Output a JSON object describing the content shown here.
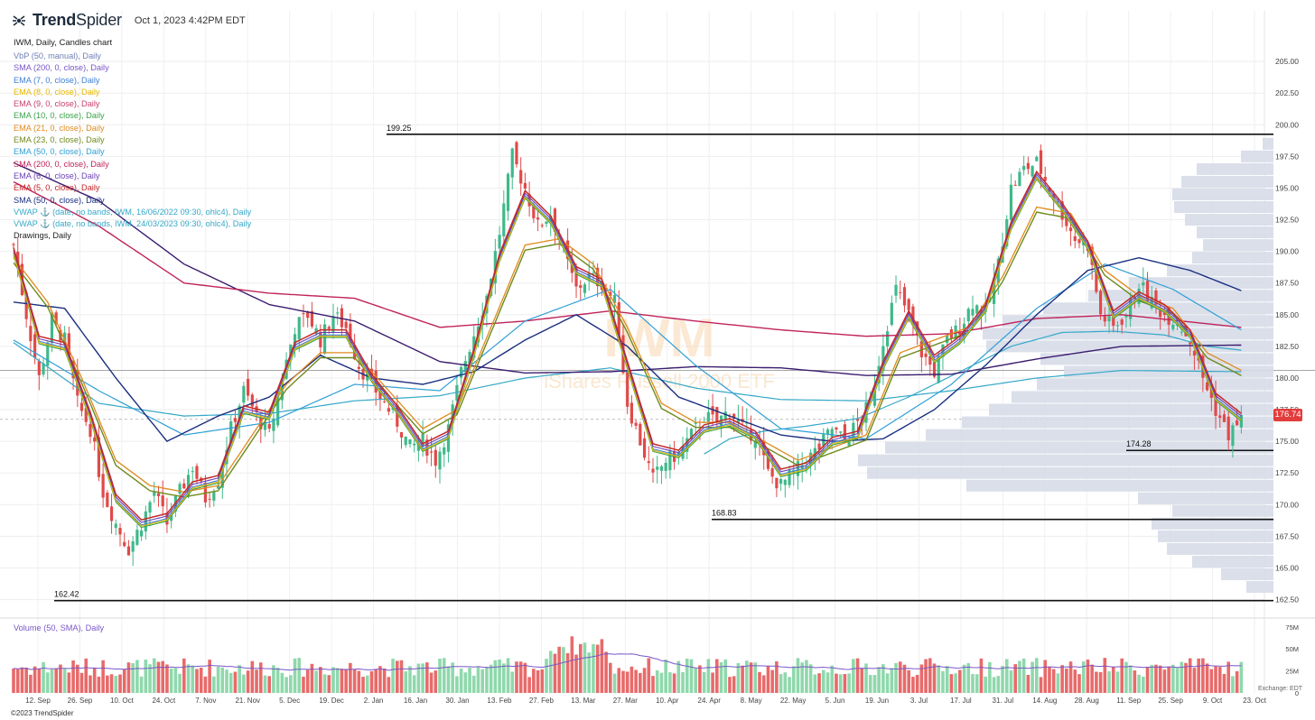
{
  "header": {
    "brand_bold": "Trend",
    "brand_light": "Spider",
    "timestamp": "Oct 1, 2023 4:42PM EDT",
    "symbol_line": "IWM, Daily, Candles chart"
  },
  "indicators": [
    {
      "label": "VbP (50, manual), Daily",
      "color": "#6f7fb5"
    },
    {
      "label": "SMA (200, 0, close), Daily",
      "color": "#7a56c8"
    },
    {
      "label": "EMA (7, 0, close), Daily",
      "color": "#3f7fd6"
    },
    {
      "label": "EMA (8, 0, close), Daily",
      "color": "#e6b800"
    },
    {
      "label": "EMA (9, 0, close), Daily",
      "color": "#c8406a"
    },
    {
      "label": "EMA (10, 0, close), Daily",
      "color": "#3aa24a"
    },
    {
      "label": "EMA (21, 0, close), Daily",
      "color": "#e08a1e"
    },
    {
      "label": "EMA (23, 0, close), Daily",
      "color": "#6f8a1c"
    },
    {
      "label": "EMA (50, 0, close), Daily",
      "color": "#2f9fd6"
    },
    {
      "label": "SMA (200, 0, close), Daily",
      "color": "#c0235a"
    },
    {
      "label": "EMA (6, 0, close), Daily",
      "color": "#6a3fb5"
    },
    {
      "label": "EMA (5, 0, close), Daily",
      "color": "#c62828"
    },
    {
      "label": "SMA (50, 0, close), Daily",
      "color": "#1a2f80"
    },
    {
      "label": "VWAP ⚓ (date, no bands, IWM, 16/06/2022 09:30, ohlc4), Daily",
      "color": "#34a8c8"
    },
    {
      "label": "VWAP ⚓ (date, no bands, IWM, 24/03/2023 09:30, ohlc4), Daily",
      "color": "#34a8c8"
    },
    {
      "label": "Drawings, Daily",
      "color": "#222222"
    }
  ],
  "volume_title": "Volume (50, SMA), Daily",
  "footer": {
    "copyright": "©2023 TrendSpider",
    "exchange": "Exchange: EDT"
  },
  "last_price": "176.74",
  "watermark": {
    "symbol": "IWM",
    "name": "iShares Russell 2000 ETF"
  },
  "colors": {
    "up": "#3fb98a",
    "down": "#e04a4a",
    "up_vol": "#8fd8ac",
    "down_vol": "#e86a6a",
    "vbp": "#d6dce8"
  },
  "chart_data": {
    "type": "candlestick",
    "x_tick_labels": [
      "12. Sep",
      "26. Sep",
      "10. Oct",
      "24. Oct",
      "7. Nov",
      "21. Nov",
      "5. Dec",
      "19. Dec",
      "2. Jan",
      "16. Jan",
      "30. Jan",
      "13. Feb",
      "27. Feb",
      "13. Mar",
      "27. Mar",
      "10. Apr",
      "24. Apr",
      "8. May",
      "22. May",
      "5. Jun",
      "19. Jun",
      "3. Jul",
      "17. Jul",
      "31. Jul",
      "14. Aug",
      "28. Aug",
      "11. Sep",
      "25. Sep",
      "9. Oct",
      "23. Oct"
    ],
    "price_axis": {
      "ticks": [
        162.5,
        165,
        167.5,
        170,
        172.5,
        175,
        177.5,
        180,
        182.5,
        185,
        187.5,
        190,
        192.5,
        195,
        197.5,
        200,
        202.5,
        205
      ],
      "range": [
        161.4,
        209.0
      ]
    },
    "volume_axis": {
      "ticks": [
        "75M",
        "50M",
        "25M",
        "0"
      ],
      "range": [
        0,
        82
      ]
    },
    "horizontal_levels": [
      {
        "label": "199.25",
        "value": 199.25
      },
      {
        "label": "174.28",
        "value": 174.28
      },
      {
        "label": "168.83",
        "value": 168.83
      },
      {
        "label": "162.42",
        "value": 162.42
      }
    ],
    "close_path": [
      [
        0,
        190.5
      ],
      [
        3,
        185
      ],
      [
        6,
        180
      ],
      [
        9,
        184.5
      ],
      [
        12,
        183
      ],
      [
        15,
        178
      ],
      [
        18,
        176
      ],
      [
        21,
        171
      ],
      [
        24,
        168.5
      ],
      [
        27,
        166.5
      ],
      [
        30,
        168.5
      ],
      [
        33,
        171
      ],
      [
        36,
        168.5
      ],
      [
        39,
        171
      ],
      [
        42,
        173
      ],
      [
        45,
        170.5
      ],
      [
        48,
        172
      ],
      [
        51,
        176
      ],
      [
        54,
        179
      ],
      [
        57,
        177
      ],
      [
        60,
        175.5
      ],
      [
        63,
        180
      ],
      [
        66,
        184
      ],
      [
        69,
        185
      ],
      [
        72,
        183
      ],
      [
        75,
        185
      ],
      [
        78,
        184
      ],
      [
        81,
        181
      ],
      [
        84,
        179.5
      ],
      [
        87,
        178
      ],
      [
        90,
        176.5
      ],
      [
        93,
        174.5
      ],
      [
        96,
        175
      ],
      [
        99,
        173.5
      ],
      [
        102,
        176
      ],
      [
        105,
        180.5
      ],
      [
        108,
        183.5
      ],
      [
        111,
        186.5
      ],
      [
        114,
        191.5
      ],
      [
        117,
        197.5
      ],
      [
        120,
        195
      ],
      [
        123,
        192
      ],
      [
        126,
        193
      ],
      [
        129,
        190
      ],
      [
        132,
        187
      ],
      [
        135,
        188
      ],
      [
        138,
        187.5
      ],
      [
        141,
        186
      ],
      [
        144,
        178
      ],
      [
        147,
        175
      ],
      [
        150,
        172
      ],
      [
        153,
        173.5
      ],
      [
        156,
        174
      ],
      [
        159,
        175.5
      ],
      [
        162,
        177
      ],
      [
        165,
        176.5
      ],
      [
        168,
        177.5
      ],
      [
        171,
        176
      ],
      [
        174,
        175.5
      ],
      [
        177,
        172.5
      ],
      [
        180,
        171.5
      ],
      [
        183,
        172.5
      ],
      [
        186,
        173.5
      ],
      [
        189,
        174.5
      ],
      [
        192,
        176
      ],
      [
        195,
        175
      ],
      [
        198,
        176.5
      ],
      [
        201,
        178
      ],
      [
        204,
        183
      ],
      [
        207,
        187
      ],
      [
        210,
        185
      ],
      [
        213,
        182
      ],
      [
        216,
        180.5
      ],
      [
        219,
        183
      ],
      [
        222,
        184
      ],
      [
        225,
        186
      ],
      [
        228,
        185
      ],
      [
        231,
        189
      ],
      [
        234,
        195
      ],
      [
        237,
        196.5
      ],
      [
        240,
        197
      ],
      [
        243,
        195
      ],
      [
        246,
        193
      ],
      [
        249,
        191
      ],
      [
        252,
        190.5
      ],
      [
        255,
        185
      ],
      [
        258,
        184
      ],
      [
        261,
        185
      ],
      [
        264,
        187.5
      ],
      [
        267,
        186
      ],
      [
        270,
        185
      ],
      [
        273,
        184.5
      ],
      [
        276,
        183
      ],
      [
        279,
        180
      ],
      [
        282,
        177.5
      ],
      [
        285,
        175.5
      ],
      [
        288,
        176.74
      ]
    ],
    "ema_fast_path": [
      [
        0,
        190
      ],
      [
        6,
        183
      ],
      [
        12,
        182.5
      ],
      [
        18,
        177
      ],
      [
        24,
        170.5
      ],
      [
        30,
        168.5
      ],
      [
        36,
        169
      ],
      [
        42,
        171.5
      ],
      [
        48,
        172
      ],
      [
        54,
        177.5
      ],
      [
        60,
        177
      ],
      [
        66,
        182.5
      ],
      [
        72,
        183.5
      ],
      [
        78,
        183.5
      ],
      [
        84,
        180
      ],
      [
        90,
        177.5
      ],
      [
        96,
        174.5
      ],
      [
        102,
        175.5
      ],
      [
        108,
        182
      ],
      [
        114,
        189.5
      ],
      [
        120,
        194.5
      ],
      [
        126,
        192.5
      ],
      [
        132,
        188.5
      ],
      [
        138,
        187.5
      ],
      [
        144,
        181
      ],
      [
        150,
        174.5
      ],
      [
        156,
        174
      ],
      [
        162,
        176
      ],
      [
        168,
        176.5
      ],
      [
        174,
        175.5
      ],
      [
        180,
        172.5
      ],
      [
        186,
        173
      ],
      [
        192,
        175
      ],
      [
        198,
        175.5
      ],
      [
        204,
        181
      ],
      [
        210,
        185
      ],
      [
        216,
        181.5
      ],
      [
        222,
        183
      ],
      [
        228,
        185.5
      ],
      [
        234,
        192
      ],
      [
        240,
        196
      ],
      [
        246,
        193.5
      ],
      [
        252,
        190.5
      ],
      [
        258,
        185
      ],
      [
        264,
        186.5
      ],
      [
        270,
        185.5
      ],
      [
        276,
        183.5
      ],
      [
        282,
        178.5
      ],
      [
        288,
        176.9
      ]
    ],
    "ema_21_path": [
      [
        0,
        189.5
      ],
      [
        8,
        186
      ],
      [
        16,
        180
      ],
      [
        24,
        173.5
      ],
      [
        32,
        171.5
      ],
      [
        40,
        171
      ],
      [
        48,
        171.5
      ],
      [
        56,
        175.5
      ],
      [
        64,
        179.5
      ],
      [
        72,
        182
      ],
      [
        80,
        182
      ],
      [
        88,
        179
      ],
      [
        96,
        176
      ],
      [
        104,
        177.5
      ],
      [
        112,
        184
      ],
      [
        120,
        190.5
      ],
      [
        128,
        191
      ],
      [
        136,
        189
      ],
      [
        144,
        184
      ],
      [
        152,
        178
      ],
      [
        160,
        176.5
      ],
      [
        168,
        176.5
      ],
      [
        176,
        175
      ],
      [
        184,
        173.5
      ],
      [
        192,
        174.5
      ],
      [
        200,
        175.5
      ],
      [
        208,
        182
      ],
      [
        216,
        183
      ],
      [
        224,
        184
      ],
      [
        232,
        188
      ],
      [
        240,
        193.5
      ],
      [
        248,
        193
      ],
      [
        256,
        188.5
      ],
      [
        264,
        186.5
      ],
      [
        272,
        185.5
      ],
      [
        280,
        182
      ],
      [
        288,
        180.6
      ]
    ],
    "ema_50_path": [
      [
        0,
        183
      ],
      [
        20,
        179
      ],
      [
        40,
        175.5
      ],
      [
        60,
        176.5
      ],
      [
        80,
        179.5
      ],
      [
        100,
        179
      ],
      [
        120,
        184.5
      ],
      [
        140,
        187
      ],
      [
        160,
        181
      ],
      [
        180,
        176
      ],
      [
        200,
        175.2
      ],
      [
        220,
        179.5
      ],
      [
        240,
        185.5
      ],
      [
        256,
        189
      ],
      [
        272,
        187
      ],
      [
        288,
        183.8
      ]
    ],
    "sma_50_path": [
      [
        0,
        186
      ],
      [
        12,
        185.5
      ],
      [
        24,
        180
      ],
      [
        36,
        175
      ],
      [
        48,
        177
      ],
      [
        60,
        178.5
      ],
      [
        72,
        181.8
      ],
      [
        84,
        180
      ],
      [
        96,
        179.5
      ],
      [
        108,
        180.5
      ],
      [
        120,
        183
      ],
      [
        132,
        185
      ],
      [
        144,
        182.5
      ],
      [
        156,
        178.5
      ],
      [
        168,
        177
      ],
      [
        180,
        175.5
      ],
      [
        192,
        175
      ],
      [
        204,
        175.2
      ],
      [
        216,
        177.5
      ],
      [
        228,
        181
      ],
      [
        240,
        185
      ],
      [
        252,
        188.5
      ],
      [
        264,
        189.5
      ],
      [
        276,
        188.5
      ],
      [
        288,
        186.9
      ]
    ],
    "sma_200_red_path": [
      [
        0,
        195.5
      ],
      [
        20,
        192
      ],
      [
        40,
        187.5
      ],
      [
        60,
        186.7
      ],
      [
        80,
        186.3
      ],
      [
        100,
        184
      ],
      [
        120,
        184.5
      ],
      [
        140,
        185.3
      ],
      [
        160,
        184.5
      ],
      [
        180,
        183.8
      ],
      [
        200,
        183.3
      ],
      [
        220,
        183.5
      ],
      [
        240,
        184.7
      ],
      [
        260,
        185
      ],
      [
        288,
        184.0
      ]
    ],
    "sma_200_purple_path": [
      [
        0,
        197
      ],
      [
        20,
        194
      ],
      [
        40,
        189
      ],
      [
        60,
        185.8
      ],
      [
        80,
        184.5
      ],
      [
        100,
        181.3
      ],
      [
        120,
        180.4
      ],
      [
        140,
        180.5
      ],
      [
        160,
        180.9
      ],
      [
        180,
        180.8
      ],
      [
        200,
        180.2
      ],
      [
        220,
        180.3
      ],
      [
        240,
        181.5
      ],
      [
        260,
        182.5
      ],
      [
        288,
        182.6
      ]
    ],
    "vwap1_path": [
      [
        0,
        182.8
      ],
      [
        20,
        178
      ],
      [
        40,
        177
      ],
      [
        60,
        177.2
      ],
      [
        80,
        178.2
      ],
      [
        100,
        178.6
      ],
      [
        120,
        180
      ],
      [
        140,
        180.8
      ],
      [
        160,
        179.2
      ],
      [
        180,
        178.3
      ],
      [
        200,
        178.2
      ],
      [
        220,
        179
      ],
      [
        240,
        180
      ],
      [
        260,
        180.6
      ],
      [
        288,
        180.5
      ]
    ],
    "vwap2_path": [
      [
        162,
        174
      ],
      [
        168,
        175.2
      ],
      [
        176,
        175.8
      ],
      [
        186,
        176.2
      ],
      [
        198,
        176.8
      ],
      [
        210,
        178.5
      ],
      [
        222,
        180.5
      ],
      [
        234,
        182.5
      ],
      [
        246,
        183.6
      ],
      [
        258,
        183.7
      ],
      [
        270,
        183.4
      ],
      [
        280,
        182.5
      ],
      [
        288,
        182.2
      ]
    ],
    "vbp_profile": [
      [
        198.5,
        12
      ],
      [
        197.5,
        36
      ],
      [
        196.5,
        85
      ],
      [
        195.5,
        102
      ],
      [
        194.5,
        112
      ],
      [
        193.5,
        110
      ],
      [
        192.5,
        98
      ],
      [
        191.5,
        85
      ],
      [
        190.5,
        78
      ],
      [
        189.5,
        90
      ],
      [
        188.5,
        118
      ],
      [
        187.5,
        160
      ],
      [
        186.5,
        205
      ],
      [
        185.5,
        255
      ],
      [
        184.5,
        300
      ],
      [
        183.5,
        322
      ],
      [
        182.5,
        318
      ],
      [
        181.5,
        258
      ],
      [
        180.5,
        232
      ],
      [
        179.5,
        262
      ],
      [
        178.5,
        290
      ],
      [
        177.5,
        315
      ],
      [
        176.5,
        345
      ],
      [
        175.5,
        385
      ],
      [
        174.5,
        430
      ],
      [
        173.5,
        460
      ],
      [
        172.5,
        450
      ],
      [
        171.5,
        340
      ],
      [
        170.5,
        150
      ],
      [
        169.5,
        112
      ],
      [
        168.5,
        135
      ],
      [
        167.5,
        128
      ],
      [
        166.5,
        118
      ],
      [
        165.5,
        90
      ],
      [
        164.5,
        58
      ],
      [
        163.5,
        30
      ]
    ]
  }
}
